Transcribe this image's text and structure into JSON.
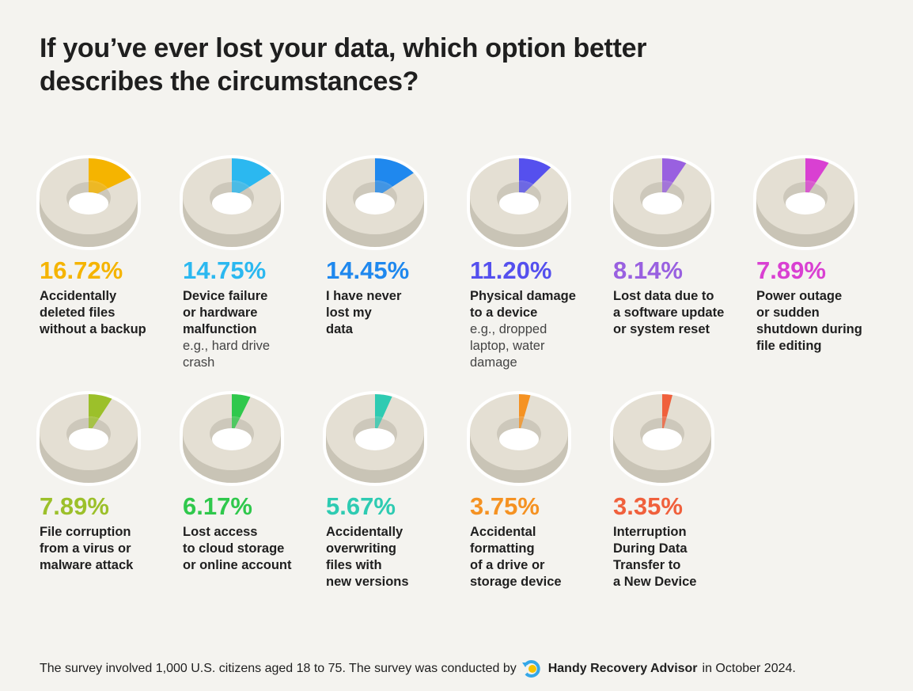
{
  "chart_data": {
    "type": "pie",
    "title": "If you’ve ever lost your data, which option better describes the circumstances?",
    "unit": "%",
    "items": [
      {
        "value": 16.72,
        "pct_label": "16.72%",
        "label": "Accidentally\ndeleted files\nwithout a backup",
        "note": "",
        "color": "#f5b400"
      },
      {
        "value": 14.75,
        "pct_label": "14.75%",
        "label": "Device failure\nor hardware\nmalfunction",
        "note": "e.g., hard drive\ncrash",
        "color": "#2bb8f0"
      },
      {
        "value": 14.45,
        "pct_label": "14.45%",
        "label": "I have never\nlost my\ndata",
        "note": "",
        "color": "#1f88ee"
      },
      {
        "value": 11.2,
        "pct_label": "11.20%",
        "label": "Physical damage\nto a device",
        "note": "e.g., dropped\nlaptop, water\ndamage",
        "color": "#5550ee"
      },
      {
        "value": 8.14,
        "pct_label": "8.14%",
        "label": "Lost data due to\na software update\nor system reset",
        "note": "",
        "color": "#9960e0"
      },
      {
        "value": 7.89,
        "pct_label": "7.89%",
        "label": "Power outage\nor sudden\nshutdown during\nfile editing",
        "note": "",
        "color": "#d940d2"
      },
      {
        "value": 7.89,
        "pct_label": "7.89%",
        "label": "File corruption\nfrom a virus or\nmalware attack",
        "note": "",
        "color": "#9cc02a"
      },
      {
        "value": 6.17,
        "pct_label": "6.17%",
        "label": "Lost access\nto cloud storage\nor online account",
        "note": "",
        "color": "#2fc84c"
      },
      {
        "value": 5.67,
        "pct_label": "5.67%",
        "label": "Accidentally\noverwriting\nfiles with\nnew versions",
        "note": "",
        "color": "#2ecbb2"
      },
      {
        "value": 3.75,
        "pct_label": "3.75%",
        "label": "Accidental\nformatting\nof a drive or\nstorage device",
        "note": "",
        "color": "#f59222"
      },
      {
        "value": 3.35,
        "pct_label": "3.35%",
        "label": "Interruption\nDuring Data\nTransfer to\na New Device",
        "note": "",
        "color": "#f0603c"
      }
    ]
  },
  "footer": {
    "text_before": "The survey involved 1,000 U.S. citizens aged 18 to 75. The survey was conducted by",
    "brand": "Handy Recovery Advisor",
    "text_after": "in October 2024."
  }
}
